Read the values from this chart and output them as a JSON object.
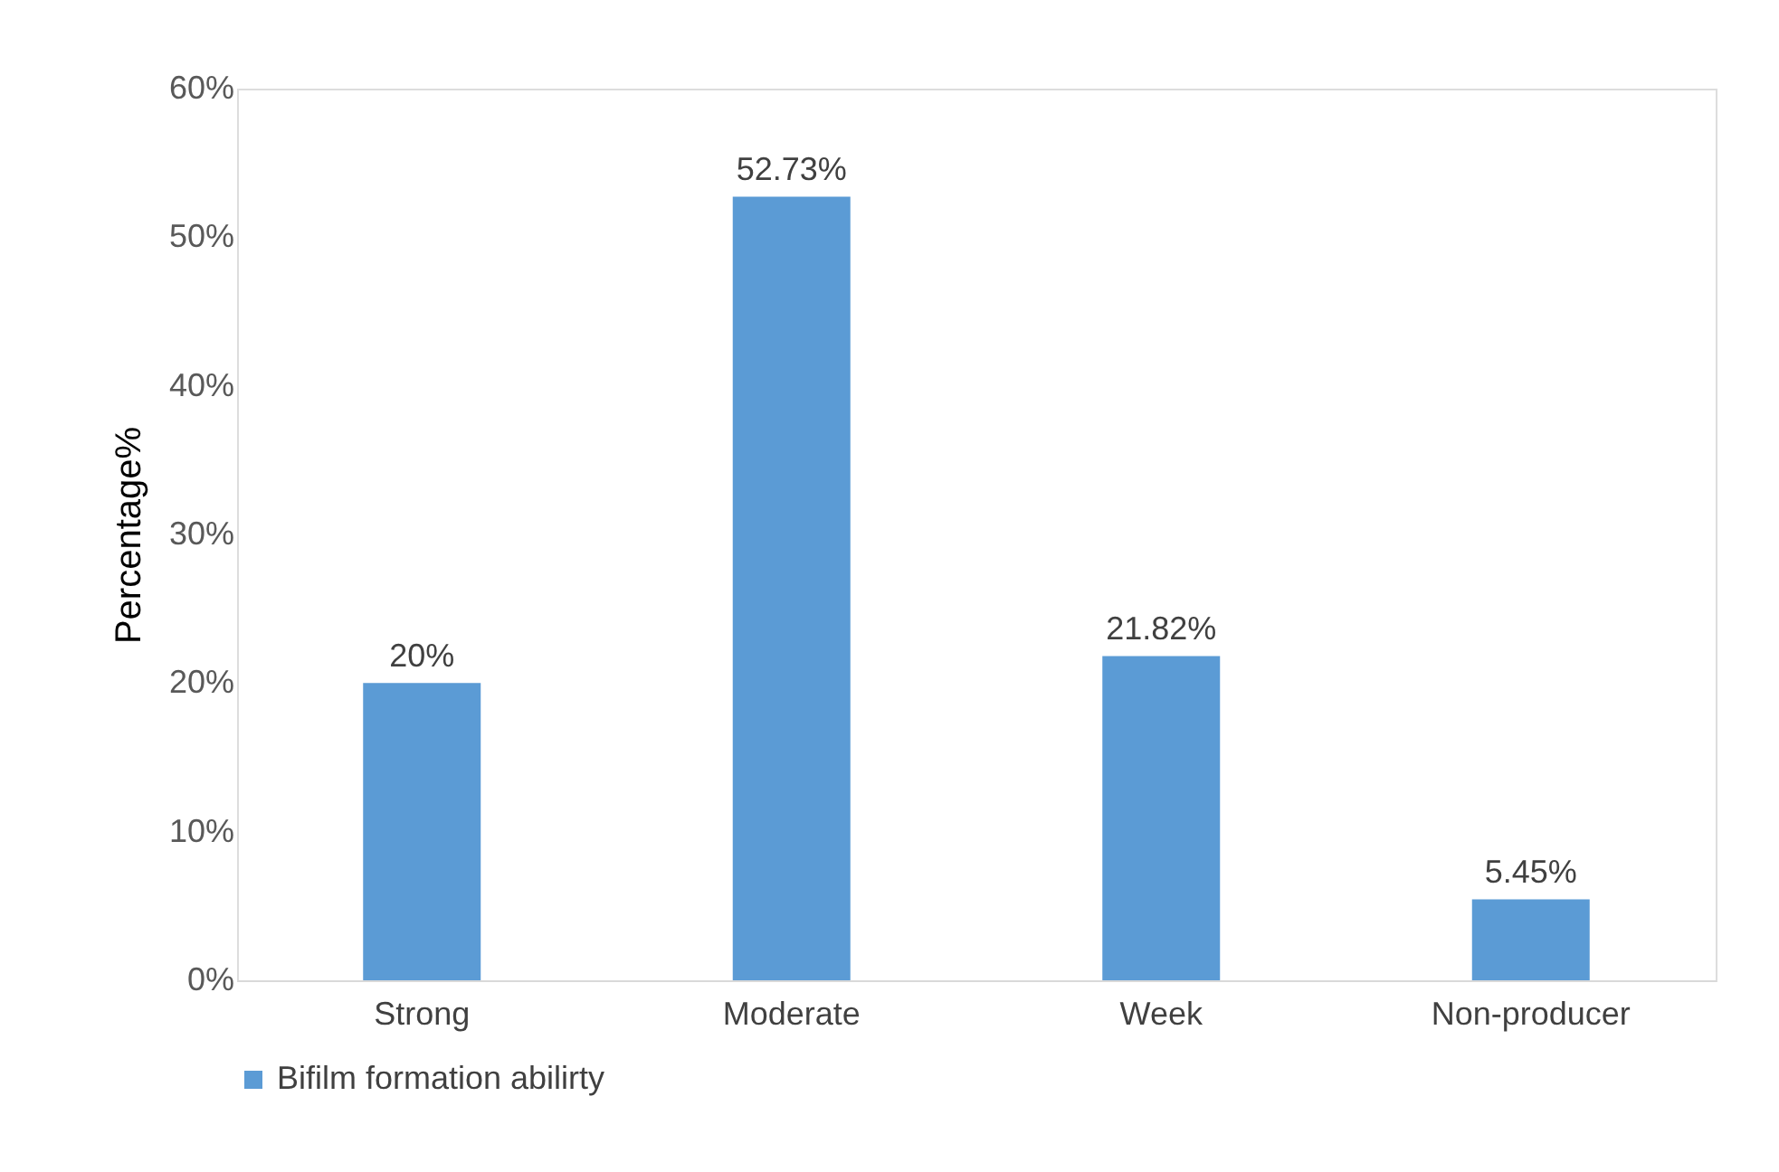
{
  "chart_data": {
    "type": "bar",
    "categories": [
      "Strong",
      "Moderate",
      "Week",
      "Non-producer"
    ],
    "series": [
      {
        "name": "Bifilm formation abilirty",
        "color": "#5b9bd5",
        "values": [
          20,
          52.73,
          21.82,
          5.45
        ],
        "value_labels": [
          "20%",
          "52.73%",
          "21.82%",
          "5.45%"
        ]
      }
    ],
    "ylabel": "Percentage%",
    "ylim": [
      0,
      60
    ],
    "yticks": [
      {
        "value": 0,
        "label": "0%"
      },
      {
        "value": 10,
        "label": "10%"
      },
      {
        "value": 20,
        "label": "20%"
      },
      {
        "value": 30,
        "label": "30%"
      },
      {
        "value": 40,
        "label": "40%"
      },
      {
        "value": 50,
        "label": "50%"
      },
      {
        "value": 60,
        "label": "60%"
      }
    ],
    "grid": false,
    "legend": "bottom"
  }
}
